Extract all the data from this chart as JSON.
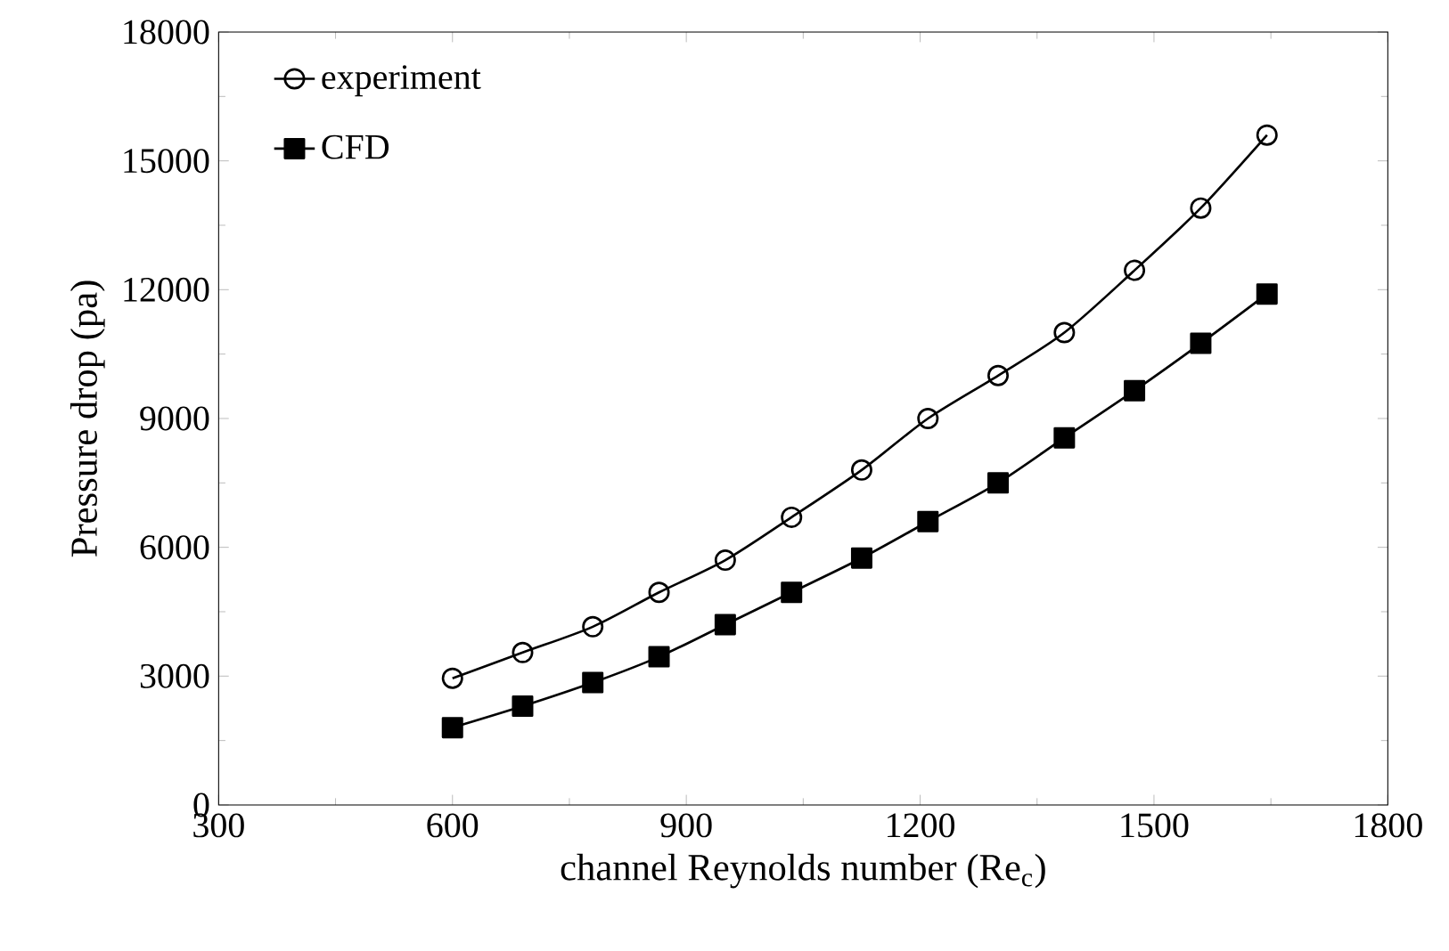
{
  "chart_data": {
    "type": "line",
    "xlabel": "channel Reynolds number (Re$_{c}$)",
    "ylabel": "Pressure drop (pa)",
    "xlim": [
      300,
      1800
    ],
    "xticks": [
      300,
      600,
      900,
      1200,
      1500,
      1800
    ],
    "ylim": [
      0,
      18000
    ],
    "yticks": [
      0,
      3000,
      6000,
      9000,
      12000,
      15000,
      18000
    ],
    "legend": "top left",
    "grid": false,
    "x": [
      600,
      690,
      780,
      865,
      950,
      1035,
      1125,
      1210,
      1300,
      1385,
      1475,
      1560,
      1645
    ],
    "series": [
      {
        "name": "experiment",
        "color": "#000000",
        "marker": "circle",
        "values": [
          2950,
          3550,
          4150,
          4950,
          5700,
          6700,
          7800,
          9000,
          10000,
          11000,
          12450,
          13900,
          15600
        ]
      },
      {
        "name": "CFD",
        "color": "#000000",
        "marker": "square",
        "values": [
          1800,
          2300,
          2850,
          3450,
          4200,
          4950,
          5750,
          6600,
          7500,
          8550,
          9650,
          10750,
          11900
        ]
      }
    ]
  }
}
